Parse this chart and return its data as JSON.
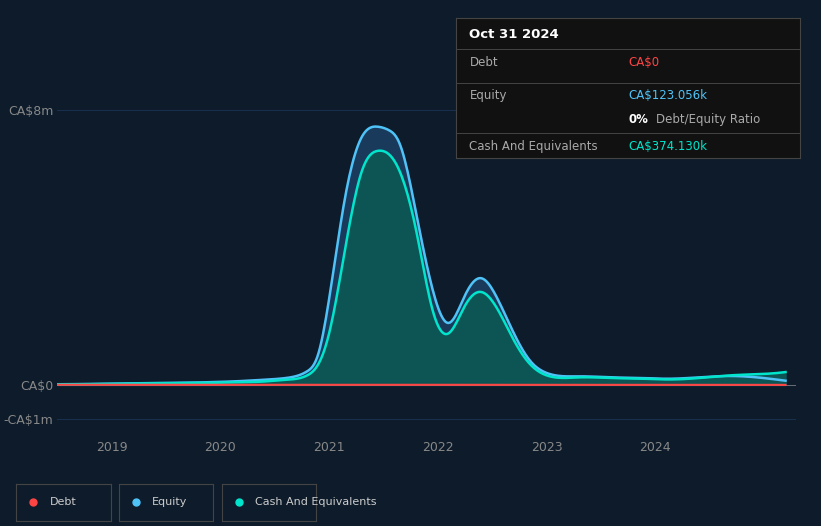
{
  "bg_color": "#0d1b2a",
  "plot_bg_color": "#0d1b2a",
  "grid_color": "#1a3050",
  "tooltip": {
    "date": "Oct 31 2024",
    "debt_label": "Debt",
    "debt_value": "CA$0",
    "debt_color": "#ff4444",
    "equity_label": "Equity",
    "equity_value": "CA$123.056k",
    "equity_color": "#4fc3f7",
    "ratio_value": "0%",
    "ratio_label": "Debt/Equity Ratio",
    "ratio_color": "#ffffff",
    "cash_label": "Cash And Equivalents",
    "cash_value": "CA$374.130k",
    "cash_color": "#00e5cc"
  },
  "ylabel_8m": "CA$8m",
  "ylabel_0": "CA$0",
  "ylabel_neg1m": "-CA$1m",
  "yticks": [
    8000000,
    0,
    -1000000
  ],
  "ylim": [
    -1500000,
    9500000
  ],
  "xlim_start": 2018.5,
  "xlim_end": 2025.3,
  "xtick_years": [
    2019,
    2020,
    2021,
    2022,
    2023,
    2024
  ],
  "debt_color": "#ff4444",
  "equity_color": "#4fc3f7",
  "equity_fill_color": "#1a3a5c",
  "cash_color": "#00e5cc",
  "cash_fill_color": "#0d5555",
  "legend_items": [
    {
      "label": "Debt",
      "color": "#ff4444"
    },
    {
      "label": "Equity",
      "color": "#4fc3f7"
    },
    {
      "label": "Cash And Equivalents",
      "color": "#00e5cc"
    }
  ],
  "time_points": [
    2018.5,
    2018.8,
    2019.0,
    2019.3,
    2019.6,
    2019.9,
    2020.1,
    2020.4,
    2020.6,
    2020.8,
    2020.9,
    2021.0,
    2021.15,
    2021.3,
    2021.45,
    2021.55,
    2021.65,
    2021.8,
    2021.95,
    2022.1,
    2022.25,
    2022.4,
    2022.55,
    2022.7,
    2022.85,
    2023.0,
    2023.3,
    2023.6,
    2023.9,
    2024.1,
    2024.4,
    2024.7,
    2025.0,
    2025.2
  ],
  "equity_values": [
    20000,
    30000,
    40000,
    50000,
    60000,
    80000,
    100000,
    150000,
    200000,
    400000,
    900000,
    2500000,
    5500000,
    7200000,
    7500000,
    7400000,
    7000000,
    5000000,
    2800000,
    1800000,
    2600000,
    3100000,
    2500000,
    1500000,
    700000,
    350000,
    250000,
    220000,
    200000,
    180000,
    220000,
    260000,
    200000,
    123056
  ],
  "cash_values": [
    15000,
    20000,
    30000,
    40000,
    50000,
    60000,
    75000,
    100000,
    150000,
    280000,
    600000,
    1500000,
    4000000,
    6200000,
    6800000,
    6700000,
    6200000,
    4500000,
    2200000,
    1500000,
    2300000,
    2700000,
    2200000,
    1300000,
    600000,
    280000,
    220000,
    200000,
    180000,
    160000,
    200000,
    280000,
    320000,
    374130
  ],
  "debt_values": [
    5000,
    5000,
    5000,
    5000,
    5000,
    5000,
    5000,
    5000,
    5000,
    5000,
    5000,
    5000,
    5000,
    5000,
    5000,
    5000,
    5000,
    5000,
    5000,
    5000,
    5000,
    5000,
    5000,
    5000,
    5000,
    5000,
    5000,
    5000,
    5000,
    5000,
    5000,
    5000,
    5000,
    0
  ]
}
